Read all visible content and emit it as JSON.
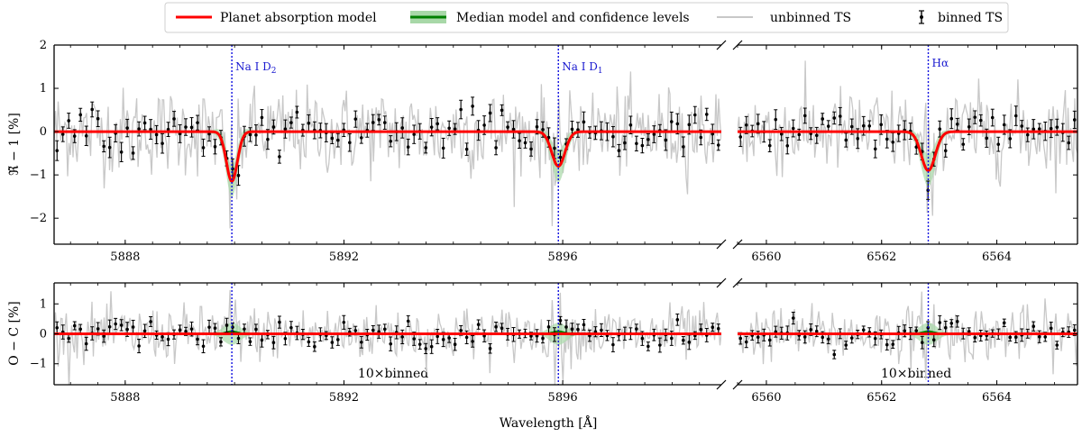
{
  "chart_data": {
    "type": "scatter",
    "xlabel": "Wavelength [Å]",
    "legend": {
      "placement": "top-center",
      "entries": [
        "Planet absorption model",
        "Median model and confidence levels",
        "unbinned TS",
        "binned TS"
      ]
    },
    "colors": {
      "model": "#ff0000",
      "median": "#008000",
      "confidence": "#a8d8a8",
      "unbinned": "#c8c8c8",
      "binned": "#000000",
      "lines": "#1010e0"
    },
    "panels": [
      {
        "id": "top",
        "ylabel": "ℜ̃ − 1 [%]",
        "ylim": [
          -2.6,
          2.0
        ],
        "yticks": [
          -2,
          -1,
          0,
          1,
          2
        ],
        "ytick_labels": [
          "−2",
          "−1",
          "0",
          "1",
          "2"
        ],
        "left": {
          "xlim": [
            5886.7,
            5898.9
          ],
          "xticks": [
            5888,
            5892,
            5896
          ],
          "xtick_labels": [
            "5888",
            "5892",
            "5896"
          ],
          "lines": [
            {
              "name": "Na I D2",
              "label": "Na I D",
              "sub": "2",
              "x": 5889.95
            },
            {
              "name": "Na I D1",
              "label": "Na I D",
              "sub": "1",
              "x": 5895.92
            }
          ],
          "absorption": [
            {
              "center": 5889.95,
              "depth": -1.15,
              "sigma": 0.1
            },
            {
              "center": 5895.92,
              "depth": -0.8,
              "sigma": 0.12
            }
          ]
        },
        "right": {
          "xlim": [
            6559.5,
            6565.4
          ],
          "xticks": [
            6560,
            6562,
            6564
          ],
          "xtick_labels": [
            "6560",
            "6562",
            "6564"
          ],
          "lines": [
            {
              "name": "H-alpha",
              "label": "Hα",
              "sub": "",
              "x": 6562.81
            }
          ],
          "absorption": [
            {
              "center": 6562.81,
              "depth": -0.9,
              "sigma": 0.12
            }
          ]
        }
      },
      {
        "id": "bottom",
        "ylabel": "O − C [%]",
        "ylim": [
          -1.7,
          1.7
        ],
        "yticks": [
          -1,
          0,
          1
        ],
        "ytick_labels": [
          "−1",
          "0",
          "1"
        ],
        "note": "10×binned",
        "left": {
          "xlim": [
            5886.7,
            5898.9
          ],
          "xticks": [
            5888,
            5892,
            5896
          ],
          "xtick_labels": [
            "5888",
            "5892",
            "5896"
          ]
        },
        "right": {
          "xlim": [
            6559.5,
            6565.4
          ],
          "xticks": [
            6560,
            6562,
            6564
          ],
          "xtick_labels": [
            "6560",
            "6562",
            "6564"
          ]
        }
      }
    ]
  }
}
